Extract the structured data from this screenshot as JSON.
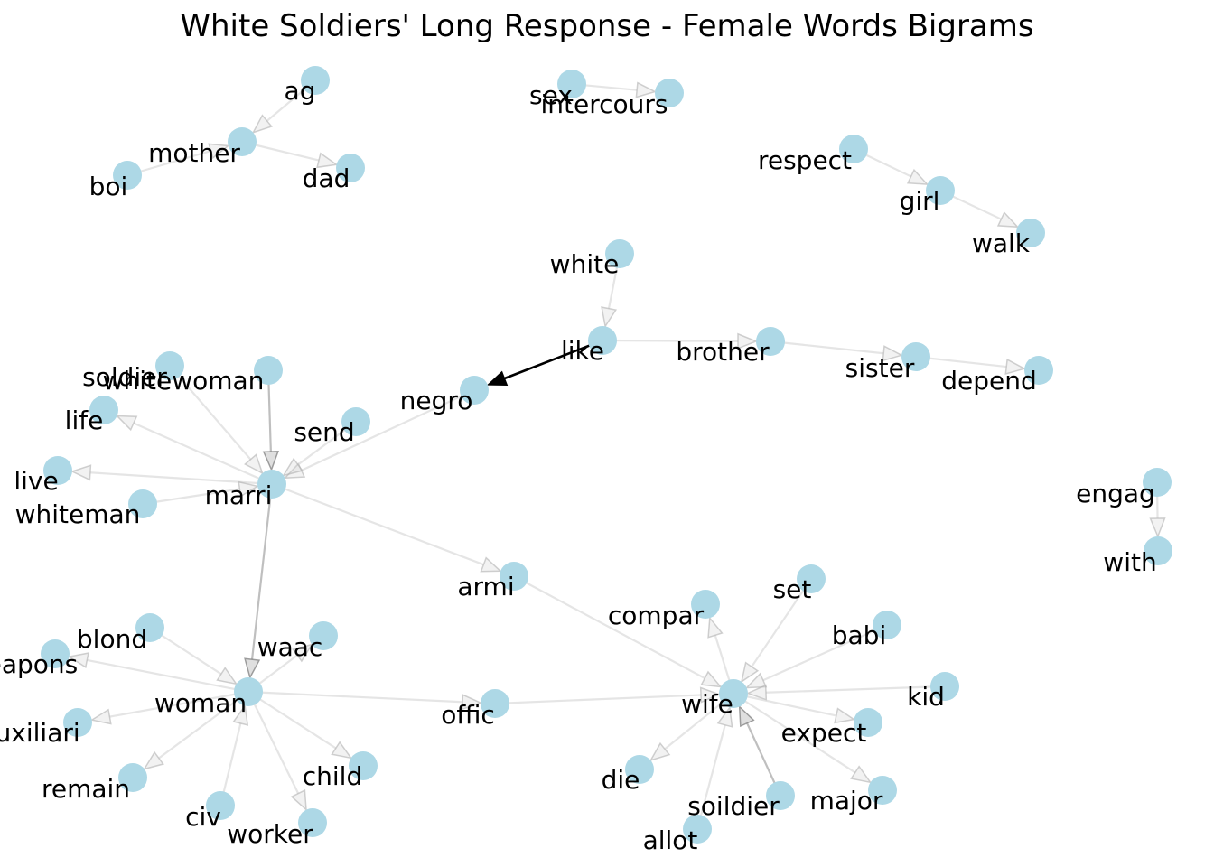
{
  "title": "White Soldiers' Long Response - Female Words Bigrams",
  "colors": {
    "node": "#add8e6",
    "edge_light": "#d3d3d3",
    "edge_medium": "#a9a9a9",
    "edge_strong": "#000000",
    "text": "#000000"
  },
  "nodes": [
    {
      "id": "ag",
      "label": "ag"
    },
    {
      "id": "mother",
      "label": "mother"
    },
    {
      "id": "boi",
      "label": "boi"
    },
    {
      "id": "dad",
      "label": "dad"
    },
    {
      "id": "sex",
      "label": "sex"
    },
    {
      "id": "intercours",
      "label": "intercours"
    },
    {
      "id": "respect",
      "label": "respect"
    },
    {
      "id": "girl",
      "label": "girl"
    },
    {
      "id": "walk",
      "label": "walk"
    },
    {
      "id": "white",
      "label": "white"
    },
    {
      "id": "like",
      "label": "like"
    },
    {
      "id": "brother",
      "label": "brother"
    },
    {
      "id": "sister",
      "label": "sister"
    },
    {
      "id": "depend",
      "label": "depend"
    },
    {
      "id": "negro",
      "label": "negro"
    },
    {
      "id": "soldier",
      "label": "soldier"
    },
    {
      "id": "whitewoman",
      "label": "whitewoman"
    },
    {
      "id": "life",
      "label": "life"
    },
    {
      "id": "send",
      "label": "send"
    },
    {
      "id": "live",
      "label": "live"
    },
    {
      "id": "marri",
      "label": "marri"
    },
    {
      "id": "whiteman",
      "label": "whiteman"
    },
    {
      "id": "engag",
      "label": "engag"
    },
    {
      "id": "with",
      "label": "with"
    },
    {
      "id": "armi",
      "label": "armi"
    },
    {
      "id": "blond",
      "label": "blond"
    },
    {
      "id": "waac",
      "label": "waac"
    },
    {
      "id": "weapons",
      "label": "weapons"
    },
    {
      "id": "woman",
      "label": "woman"
    },
    {
      "id": "auxiliari",
      "label": "auxiliari"
    },
    {
      "id": "offic",
      "label": "offic"
    },
    {
      "id": "remain",
      "label": "remain"
    },
    {
      "id": "child",
      "label": "child"
    },
    {
      "id": "civ",
      "label": "civ"
    },
    {
      "id": "worker",
      "label": "worker"
    },
    {
      "id": "compar",
      "label": "compar"
    },
    {
      "id": "set",
      "label": "set"
    },
    {
      "id": "babi",
      "label": "babi"
    },
    {
      "id": "wife",
      "label": "wife"
    },
    {
      "id": "kid",
      "label": "kid"
    },
    {
      "id": "expect",
      "label": "expect"
    },
    {
      "id": "die",
      "label": "die"
    },
    {
      "id": "soildier",
      "label": "soildier"
    },
    {
      "id": "major",
      "label": "major"
    },
    {
      "id": "allot",
      "label": "allot"
    }
  ],
  "edges": [
    {
      "source": "ag",
      "target": "mother",
      "weight": 1
    },
    {
      "source": "boi",
      "target": "mother",
      "weight": 1
    },
    {
      "source": "mother",
      "target": "dad",
      "weight": 1
    },
    {
      "source": "sex",
      "target": "intercours",
      "weight": 1
    },
    {
      "source": "respect",
      "target": "girl",
      "weight": 1
    },
    {
      "source": "girl",
      "target": "walk",
      "weight": 1
    },
    {
      "source": "white",
      "target": "like",
      "weight": 1
    },
    {
      "source": "like",
      "target": "brother",
      "weight": 1
    },
    {
      "source": "brother",
      "target": "sister",
      "weight": 1
    },
    {
      "source": "sister",
      "target": "depend",
      "weight": 1
    },
    {
      "source": "like",
      "target": "negro",
      "weight": 3
    },
    {
      "source": "negro",
      "target": "marri",
      "weight": 1
    },
    {
      "source": "soldier",
      "target": "marri",
      "weight": 1
    },
    {
      "source": "whitewoman",
      "target": "marri",
      "weight": 2
    },
    {
      "source": "send",
      "target": "marri",
      "weight": 1
    },
    {
      "source": "marri",
      "target": "life",
      "weight": 1
    },
    {
      "source": "marri",
      "target": "live",
      "weight": 1
    },
    {
      "source": "whiteman",
      "target": "marri",
      "weight": 1
    },
    {
      "source": "marri",
      "target": "woman",
      "weight": 2
    },
    {
      "source": "marri",
      "target": "armi",
      "weight": 1
    },
    {
      "source": "armi",
      "target": "wife",
      "weight": 1
    },
    {
      "source": "engag",
      "target": "with",
      "weight": 1
    },
    {
      "source": "blond",
      "target": "woman",
      "weight": 1
    },
    {
      "source": "woman",
      "target": "waac",
      "weight": 1
    },
    {
      "source": "woman",
      "target": "weapons",
      "weight": 1
    },
    {
      "source": "woman",
      "target": "auxiliari",
      "weight": 1
    },
    {
      "source": "woman",
      "target": "remain",
      "weight": 1
    },
    {
      "source": "civ",
      "target": "woman",
      "weight": 1
    },
    {
      "source": "woman",
      "target": "worker",
      "weight": 1
    },
    {
      "source": "woman",
      "target": "child",
      "weight": 1
    },
    {
      "source": "woman",
      "target": "offic",
      "weight": 1
    },
    {
      "source": "offic",
      "target": "wife",
      "weight": 1
    },
    {
      "source": "wife",
      "target": "compar",
      "weight": 1
    },
    {
      "source": "set",
      "target": "wife",
      "weight": 1
    },
    {
      "source": "babi",
      "target": "wife",
      "weight": 1
    },
    {
      "source": "kid",
      "target": "wife",
      "weight": 1
    },
    {
      "source": "wife",
      "target": "expect",
      "weight": 1
    },
    {
      "source": "wife",
      "target": "die",
      "weight": 1
    },
    {
      "source": "soildier",
      "target": "wife",
      "weight": 2
    },
    {
      "source": "wife",
      "target": "major",
      "weight": 1
    },
    {
      "source": "allot",
      "target": "wife",
      "weight": 1
    }
  ]
}
